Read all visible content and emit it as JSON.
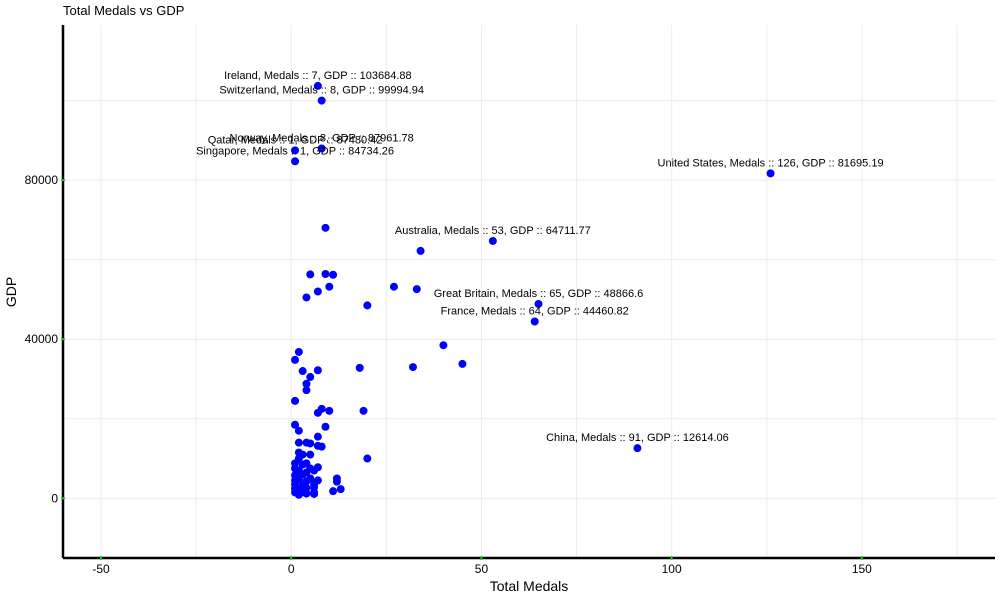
{
  "chart_data": {
    "type": "scatter",
    "title": "Total Medals vs GDP",
    "xlabel": "Total Medals",
    "ylabel": "GDP",
    "xlim": [
      -60,
      185
    ],
    "ylim": [
      -15000,
      119000
    ],
    "xticks": [
      -50,
      0,
      50,
      100,
      150
    ],
    "yticks": [
      0,
      40000,
      80000
    ],
    "grid": true,
    "point_color": "#0000ff",
    "tick_color": "#22cc22",
    "points": [
      {
        "x": 126,
        "y": 81695.19,
        "label": "United States, Medals :: 126, GDP :: 81695.19"
      },
      {
        "x": 91,
        "y": 12614.06,
        "label": "China, Medals :: 91, GDP :: 12614.06"
      },
      {
        "x": 65,
        "y": 48866.6,
        "label": "Great Britain, Medals :: 65, GDP :: 48866.6"
      },
      {
        "x": 64,
        "y": 44460.82,
        "label": "France, Medals :: 64, GDP :: 44460.82"
      },
      {
        "x": 53,
        "y": 64711.77,
        "label": "Australia, Medals :: 53, GDP :: 64711.77"
      },
      {
        "x": 7,
        "y": 103684.88,
        "label": "Ireland, Medals :: 7, GDP :: 103684.88"
      },
      {
        "x": 8,
        "y": 99994.94,
        "label": "Switzerland, Medals :: 8, GDP :: 99994.94"
      },
      {
        "x": 8,
        "y": 87961.78,
        "label": "Norway, Medals :: 8, GDP :: 87961.78"
      },
      {
        "x": 1,
        "y": 87480.42,
        "label": "Qatar, Medals :: 1, GDP :: 87480.42"
      },
      {
        "x": 1,
        "y": 84734.26,
        "label": "Singapore, Medals :: 1, GDP :: 84734.26"
      },
      {
        "x": 34,
        "y": 62200
      },
      {
        "x": 9,
        "y": 68000
      },
      {
        "x": 5,
        "y": 56300
      },
      {
        "x": 9,
        "y": 56400
      },
      {
        "x": 11,
        "y": 56200
      },
      {
        "x": 10,
        "y": 53200
      },
      {
        "x": 7,
        "y": 52000
      },
      {
        "x": 4,
        "y": 50500
      },
      {
        "x": 27,
        "y": 53200
      },
      {
        "x": 33,
        "y": 52600
      },
      {
        "x": 20,
        "y": 48500
      },
      {
        "x": 40,
        "y": 38500
      },
      {
        "x": 45,
        "y": 33800
      },
      {
        "x": 32,
        "y": 33000
      },
      {
        "x": 18,
        "y": 32800
      },
      {
        "x": 2,
        "y": 36800
      },
      {
        "x": 1,
        "y": 34800
      },
      {
        "x": 3,
        "y": 32000
      },
      {
        "x": 7,
        "y": 32200
      },
      {
        "x": 5,
        "y": 30500
      },
      {
        "x": 4,
        "y": 28800
      },
      {
        "x": 4,
        "y": 27200
      },
      {
        "x": 1,
        "y": 24500
      },
      {
        "x": 8,
        "y": 22500
      },
      {
        "x": 7,
        "y": 21500
      },
      {
        "x": 10,
        "y": 22000
      },
      {
        "x": 19,
        "y": 22000
      },
      {
        "x": 1,
        "y": 18500
      },
      {
        "x": 2,
        "y": 17000
      },
      {
        "x": 9,
        "y": 18000
      },
      {
        "x": 7,
        "y": 15500
      },
      {
        "x": 2,
        "y": 14000
      },
      {
        "x": 4,
        "y": 14000
      },
      {
        "x": 5,
        "y": 13800
      },
      {
        "x": 7,
        "y": 13200
      },
      {
        "x": 8,
        "y": 13000
      },
      {
        "x": 2,
        "y": 11500
      },
      {
        "x": 3,
        "y": 11000
      },
      {
        "x": 5,
        "y": 11000
      },
      {
        "x": 2,
        "y": 10000
      },
      {
        "x": 20,
        "y": 10000
      },
      {
        "x": 1,
        "y": 8800
      },
      {
        "x": 3,
        "y": 8500
      },
      {
        "x": 4,
        "y": 8800
      },
      {
        "x": 1,
        "y": 7500
      },
      {
        "x": 2,
        "y": 7000
      },
      {
        "x": 5,
        "y": 7500
      },
      {
        "x": 7,
        "y": 7800
      },
      {
        "x": 6,
        "y": 7000
      },
      {
        "x": 1,
        "y": 5800
      },
      {
        "x": 3,
        "y": 6000
      },
      {
        "x": 4,
        "y": 6500
      },
      {
        "x": 1,
        "y": 4500
      },
      {
        "x": 2,
        "y": 4800
      },
      {
        "x": 4,
        "y": 4300
      },
      {
        "x": 5,
        "y": 5000
      },
      {
        "x": 7,
        "y": 4500
      },
      {
        "x": 12,
        "y": 5000
      },
      {
        "x": 1,
        "y": 3500
      },
      {
        "x": 3,
        "y": 3200
      },
      {
        "x": 6,
        "y": 3500
      },
      {
        "x": 12,
        "y": 4200
      },
      {
        "x": 1,
        "y": 2500
      },
      {
        "x": 2,
        "y": 2200
      },
      {
        "x": 4,
        "y": 2600
      },
      {
        "x": 6,
        "y": 2800
      },
      {
        "x": 13,
        "y": 2300
      },
      {
        "x": 1,
        "y": 1500
      },
      {
        "x": 2,
        "y": 1300
      },
      {
        "x": 3,
        "y": 1600
      },
      {
        "x": 4,
        "y": 1200
      },
      {
        "x": 6,
        "y": 1500
      },
      {
        "x": 11,
        "y": 1800
      },
      {
        "x": 2,
        "y": 900
      },
      {
        "x": 6,
        "y": 1100
      }
    ]
  }
}
